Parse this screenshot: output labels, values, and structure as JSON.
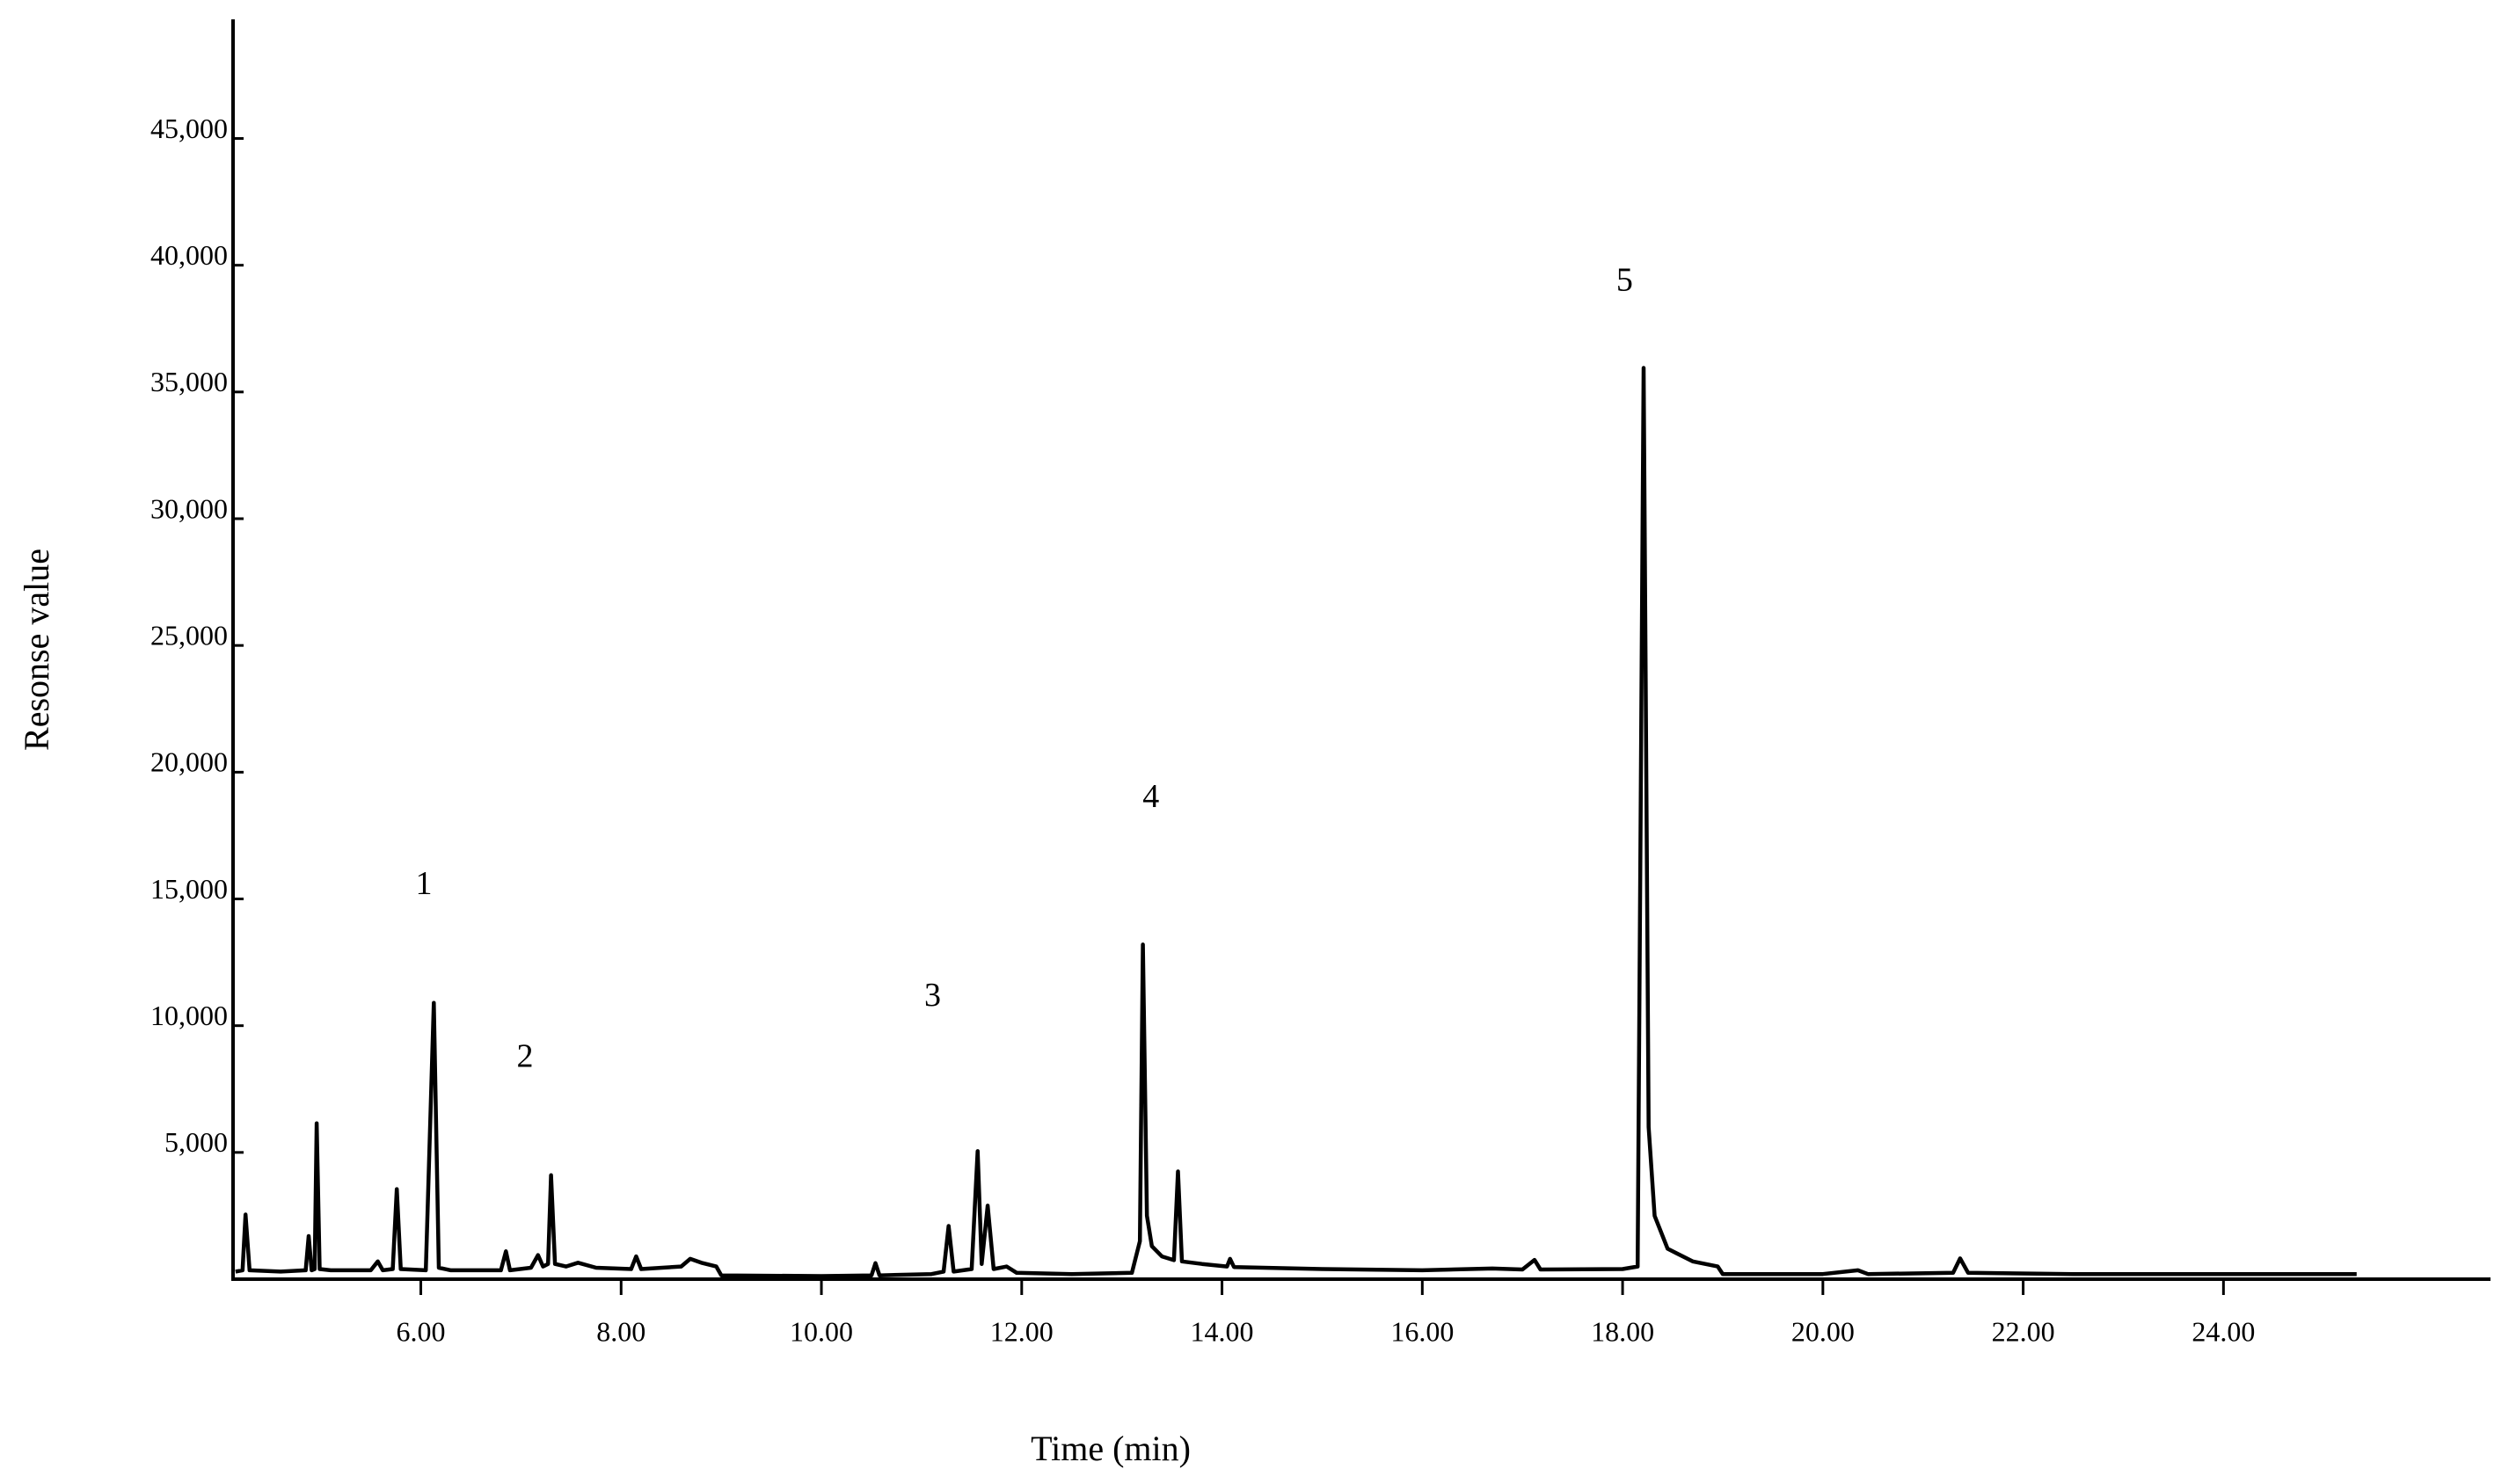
{
  "chart_data": {
    "type": "line",
    "x_label": "Time (min)",
    "y_label": "Resonse value",
    "color": "#000000",
    "grid": false,
    "xlim": [
      4.125,
      26.64
    ],
    "ylim": [
      0,
      49700
    ],
    "xticks": [
      {
        "value": 6,
        "label": "6.00"
      },
      {
        "value": 8,
        "label": "8.00"
      },
      {
        "value": 10,
        "label": "10.00"
      },
      {
        "value": 12,
        "label": "12.00"
      },
      {
        "value": 14,
        "label": "14.00"
      },
      {
        "value": 16,
        "label": "16.00"
      },
      {
        "value": 18,
        "label": "18.00"
      },
      {
        "value": 20,
        "label": "20.00"
      },
      {
        "value": 22,
        "label": "22.00"
      },
      {
        "value": 24,
        "label": "24.00"
      }
    ],
    "yticks": [
      {
        "value": 5000,
        "label": "5,000"
      },
      {
        "value": 10000,
        "label": "10,000"
      },
      {
        "value": 15000,
        "label": "15,000"
      },
      {
        "value": 20000,
        "label": "20,000"
      },
      {
        "value": 25000,
        "label": "25,000"
      },
      {
        "value": 30000,
        "label": "30,000"
      },
      {
        "value": 35000,
        "label": "35,000"
      },
      {
        "value": 40000,
        "label": "40,000"
      },
      {
        "value": 45000,
        "label": "45,000"
      }
    ],
    "x": [
      4.15,
      4.22,
      4.25,
      4.29,
      4.6,
      4.85,
      4.88,
      4.91,
      4.94,
      4.96,
      4.99,
      5.1,
      5.5,
      5.57,
      5.62,
      5.72,
      5.76,
      5.8,
      6.05,
      6.13,
      6.18,
      6.3,
      6.8,
      6.85,
      6.89,
      7.1,
      7.17,
      7.22,
      7.27,
      7.3,
      7.34,
      7.45,
      7.57,
      7.75,
      8.1,
      8.15,
      8.2,
      8.6,
      8.69,
      8.8,
      8.95,
      9.0,
      10.0,
      10.5,
      10.54,
      10.58,
      11.1,
      11.22,
      11.27,
      11.32,
      11.5,
      11.56,
      11.6,
      11.66,
      11.72,
      11.85,
      11.95,
      12.5,
      13.1,
      13.18,
      13.21,
      13.25,
      13.3,
      13.4,
      13.52,
      13.56,
      13.6,
      13.8,
      14.05,
      14.08,
      14.12,
      15,
      16,
      16.7,
      17.0,
      17.12,
      17.18,
      18.0,
      18.15,
      18.21,
      18.26,
      18.32,
      18.45,
      18.7,
      18.95,
      19.0,
      20.0,
      20.35,
      20.45,
      21.3,
      21.37,
      21.45,
      22.5,
      25.33
    ],
    "values": [
      300,
      350,
      2550,
      350,
      300,
      350,
      1700,
      350,
      400,
      6150,
      400,
      350,
      350,
      700,
      350,
      400,
      3550,
      400,
      350,
      10900,
      450,
      350,
      350,
      1100,
      350,
      450,
      950,
      500,
      600,
      4100,
      600,
      500,
      650,
      450,
      400,
      900,
      400,
      500,
      800,
      650,
      500,
      150,
      120,
      150,
      630,
      150,
      200,
      300,
      2100,
      300,
      400,
      5050,
      600,
      2900,
      400,
      500,
      250,
      200,
      250,
      1500,
      13200,
      2500,
      1300,
      900,
      750,
      4250,
      700,
      600,
      500,
      800,
      480,
      400,
      350,
      420,
      380,
      760,
      380,
      400,
      500,
      35950,
      6000,
      2500,
      1200,
      700,
      500,
      200,
      200,
      350,
      200,
      250,
      820,
      250,
      200,
      200
    ],
    "annotations": [
      {
        "text": "1",
        "x": 6.03,
        "y": 15500
      },
      {
        "text": "2",
        "x": 7.04,
        "y": 8670
      },
      {
        "text": "3",
        "x": 11.11,
        "y": 11080
      },
      {
        "text": "4",
        "x": 13.29,
        "y": 18920
      },
      {
        "text": "5",
        "x": 18.02,
        "y": 39300
      }
    ]
  }
}
